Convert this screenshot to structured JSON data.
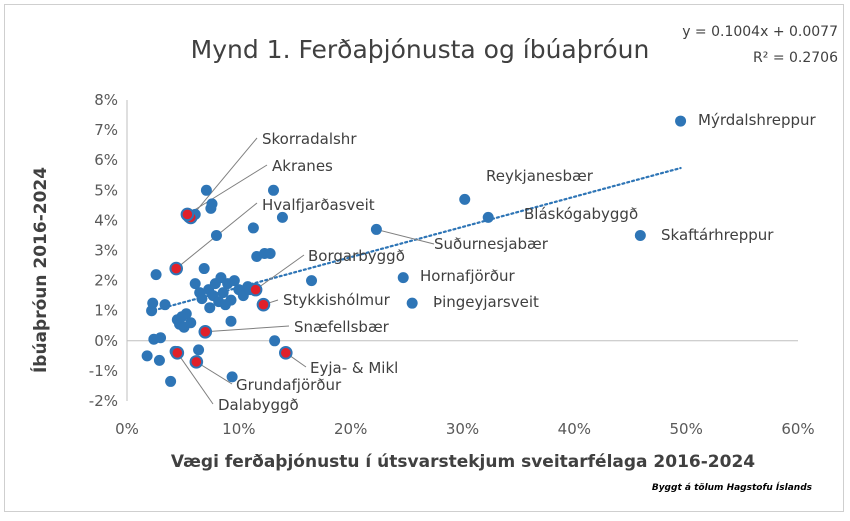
{
  "chart_data": {
    "type": "scatter",
    "title": "Mynd 1. Ferðaþjónusta og íbúaþróun",
    "xlabel": "Vægi ferðaþjónustu í útsvarstekjum sveitarfélaga 2016-2024",
    "ylabel": "Íbúaþróun 2016-2024",
    "xlim": [
      0,
      60
    ],
    "ylim": [
      -2,
      8
    ],
    "x_ticks": [
      "0%",
      "10%",
      "20%",
      "30%",
      "40%",
      "50%",
      "60%"
    ],
    "y_ticks": [
      "-2%",
      "-1%",
      "0%",
      "1%",
      "2%",
      "3%",
      "4%",
      "5%",
      "6%",
      "7%",
      "8%"
    ],
    "x_unit": "%",
    "y_unit": "%",
    "grid": false,
    "trendline": {
      "equation": "y = 0.1004x + 0.0077",
      "r2": "R² = 0.2706",
      "slope": 0.1004,
      "intercept": 0.77,
      "x_range": [
        2,
        49.5
      ],
      "color": "#2e75b6",
      "style": "dotted"
    },
    "colors": {
      "point": "#2e75b6",
      "highlight": "#e0202a",
      "trend": "#2e75b6",
      "leader": "#7f7f7f"
    },
    "labeled_points": [
      {
        "name": "Mýrdalshreppur",
        "x": 49.5,
        "y": 7.3,
        "highlight": false
      },
      {
        "name": "Reykjanesbær",
        "x": 30.2,
        "y": 4.7,
        "highlight": false
      },
      {
        "name": "Bláskógabyggð",
        "x": 32.3,
        "y": 4.1,
        "highlight": false
      },
      {
        "name": "Skaftárhreppur",
        "x": 45.9,
        "y": 3.5,
        "highlight": false
      },
      {
        "name": "Suðurnesjabær",
        "x": 22.3,
        "y": 3.7,
        "highlight": false
      },
      {
        "name": "Hornafjörður",
        "x": 24.7,
        "y": 2.1,
        "highlight": false
      },
      {
        "name": "Þingeyjarsveit",
        "x": 25.5,
        "y": 1.25,
        "highlight": false
      },
      {
        "name": "Skorradalshr",
        "x": 5.7,
        "y": 4.1,
        "highlight": true
      },
      {
        "name": "Akranes",
        "x": 5.4,
        "y": 4.2,
        "highlight": true
      },
      {
        "name": "Hvalfjarðasveit",
        "x": 4.4,
        "y": 2.4,
        "highlight": true
      },
      {
        "name": "Borgarbyggð",
        "x": 11.5,
        "y": 1.7,
        "highlight": true
      },
      {
        "name": "Stykkishólmur",
        "x": 12.2,
        "y": 1.2,
        "highlight": true
      },
      {
        "name": "Snæfellsbær",
        "x": 7.0,
        "y": 0.3,
        "highlight": true
      },
      {
        "name": "Eyja- & Mikl",
        "x": 14.2,
        "y": -0.4,
        "highlight": true
      },
      {
        "name": "Grundafjörður",
        "x": 6.2,
        "y": -0.7,
        "highlight": true
      },
      {
        "name": "Dalabyggð",
        "x": 4.5,
        "y": -0.4,
        "highlight": true
      }
    ],
    "unlabeled_points": [
      [
        1.8,
        -0.5
      ],
      [
        2.2,
        1.0
      ],
      [
        2.3,
        1.25
      ],
      [
        2.4,
        0.05
      ],
      [
        2.6,
        2.2
      ],
      [
        2.9,
        -0.65
      ],
      [
        3.0,
        0.1
      ],
      [
        3.4,
        1.2
      ],
      [
        3.9,
        -1.35
      ],
      [
        4.3,
        -0.35
      ],
      [
        4.5,
        0.7
      ],
      [
        4.7,
        0.55
      ],
      [
        4.9,
        0.8
      ],
      [
        5.1,
        0.45
      ],
      [
        5.3,
        0.9
      ],
      [
        5.7,
        0.6
      ],
      [
        5.5,
        4.1
      ],
      [
        6.1,
        4.2
      ],
      [
        6.1,
        1.9
      ],
      [
        6.4,
        -0.3
      ],
      [
        6.5,
        1.6
      ],
      [
        6.7,
        1.4
      ],
      [
        6.9,
        2.4
      ],
      [
        7.1,
        5.0
      ],
      [
        7.3,
        1.7
      ],
      [
        7.5,
        4.4
      ],
      [
        7.6,
        4.55
      ],
      [
        7.4,
        1.1
      ],
      [
        7.7,
        1.5
      ],
      [
        7.9,
        1.9
      ],
      [
        8.0,
        3.5
      ],
      [
        8.2,
        1.3
      ],
      [
        8.4,
        2.1
      ],
      [
        8.6,
        1.6
      ],
      [
        8.8,
        1.2
      ],
      [
        9.0,
        1.9
      ],
      [
        9.3,
        1.35
      ],
      [
        9.6,
        2.0
      ],
      [
        9.3,
        0.65
      ],
      [
        9.4,
        -1.2
      ],
      [
        10.0,
        1.7
      ],
      [
        10.4,
        1.5
      ],
      [
        10.8,
        1.8
      ],
      [
        11.3,
        3.75
      ],
      [
        11.0,
        1.7
      ],
      [
        11.6,
        2.8
      ],
      [
        12.3,
        2.9
      ],
      [
        12.8,
        2.9
      ],
      [
        13.1,
        5.0
      ],
      [
        13.2,
        0.0
      ],
      [
        13.9,
        4.1
      ],
      [
        16.5,
        2.0
      ]
    ]
  },
  "source": "Byggt á tölum Hagstofu Íslands"
}
